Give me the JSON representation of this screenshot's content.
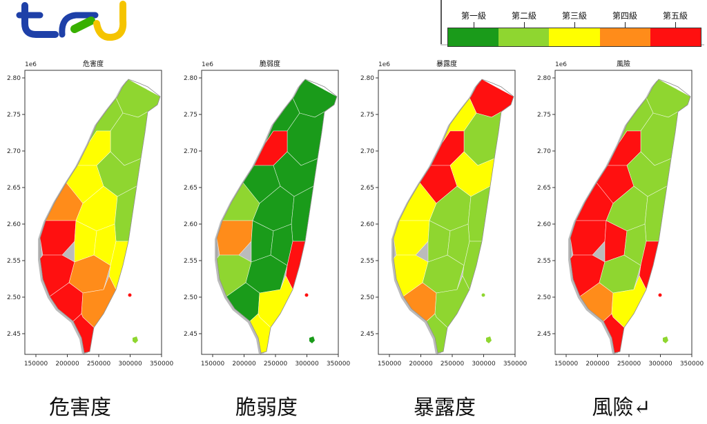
{
  "legend": {
    "levels": [
      "第一級",
      "第二級",
      "第三級",
      "第四級",
      "第五級"
    ],
    "colors": [
      "#1a9b1a",
      "#8fd630",
      "#ffff00",
      "#ff8c1a",
      "#ff1010"
    ]
  },
  "axes": {
    "exponent_label": "1e6",
    "y_ticks": [
      "2.80",
      "2.75",
      "2.70",
      "2.65",
      "2.60",
      "2.55",
      "2.50",
      "2.45"
    ],
    "x_ticks": [
      "150000",
      "200000",
      "250000",
      "300000",
      "350000"
    ]
  },
  "maps": [
    {
      "title": "危害度",
      "caption": "危害度"
    },
    {
      "title": "脆弱度",
      "caption": "脆弱度"
    },
    {
      "title": "暴露度",
      "caption": "暴露度"
    },
    {
      "title": "風險",
      "caption": "風險↵"
    }
  ],
  "logo": {
    "colors": [
      "#1e40a8",
      "#f5c400",
      "#38b000"
    ]
  }
}
